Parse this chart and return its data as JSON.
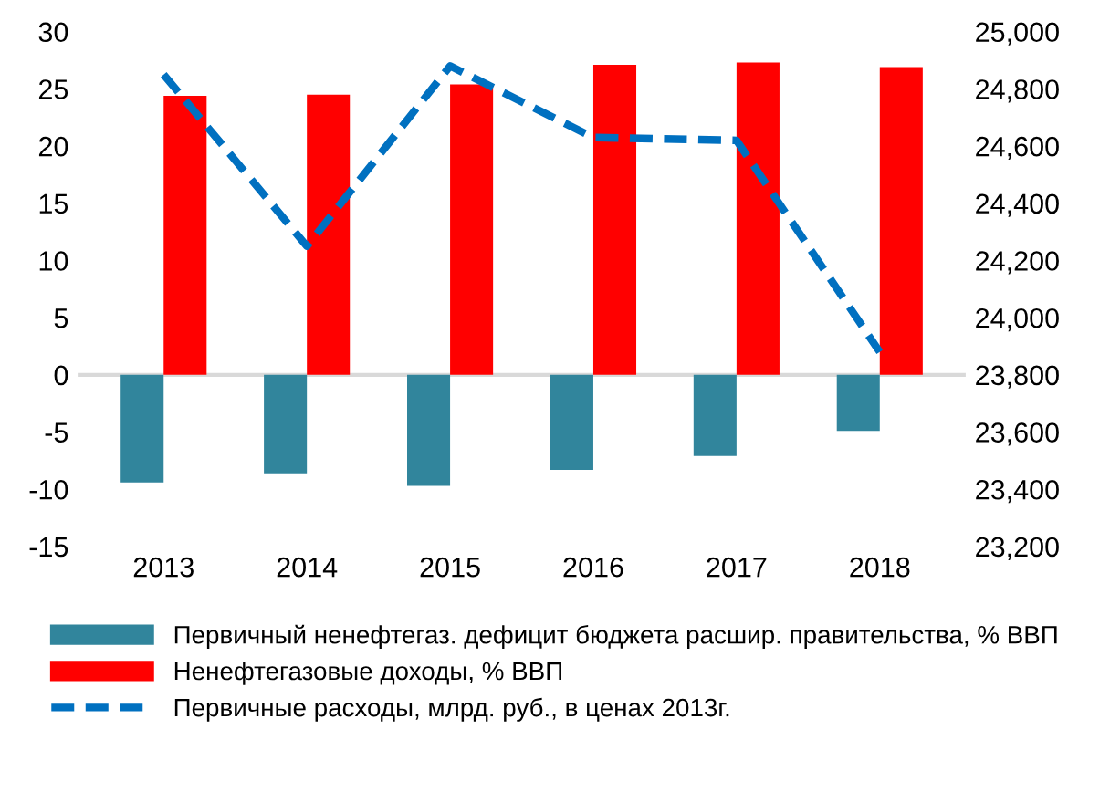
{
  "chart_data": {
    "type": "bar",
    "categories": [
      "2013",
      "2014",
      "2015",
      "2016",
      "2017",
      "2018"
    ],
    "series": [
      {
        "name": "Первичный ненефтегаз. дефицит бюджета расшир. правительства, % ВВП",
        "color": "#31859c",
        "values": [
          -9.4,
          -8.6,
          -9.7,
          -8.3,
          -7.1,
          -4.9
        ]
      },
      {
        "name": "Ненефтегазовые доходы, % ВВП",
        "color": "#ff0000",
        "values": [
          24.4,
          24.5,
          25.4,
          27.1,
          27.3,
          26.9
        ]
      },
      {
        "name": "Первичные расходы, млрд. руб., в ценах 2013г.",
        "color": "#0070c0",
        "type": "line",
        "axis": "y2",
        "line_style": "dashed",
        "values": [
          24850,
          24250,
          24880,
          24630,
          24620,
          23880
        ]
      }
    ],
    "ylim": [
      -15,
      30
    ],
    "yticks": [
      -15,
      -10,
      -5,
      0,
      5,
      10,
      15,
      20,
      25,
      30
    ],
    "y2lim": [
      23200,
      25000
    ],
    "y2ticks": [
      {
        "value": 23200,
        "label": "23,200"
      },
      {
        "value": 23400,
        "label": "23,400"
      },
      {
        "value": 23600,
        "label": "23,600"
      },
      {
        "value": 23800,
        "label": "23,800"
      },
      {
        "value": 24000,
        "label": "24,000"
      },
      {
        "value": 24200,
        "label": "24,200"
      },
      {
        "value": 24400,
        "label": "24,400"
      },
      {
        "value": 24600,
        "label": "24,600"
      },
      {
        "value": 24800,
        "label": "24,800"
      },
      {
        "value": 25000,
        "label": "25,000"
      }
    ],
    "ref_lines": [
      {
        "axis": "y",
        "value": 0,
        "color": "#d9d9d9"
      }
    ],
    "grid": false,
    "legend": "bottom"
  }
}
